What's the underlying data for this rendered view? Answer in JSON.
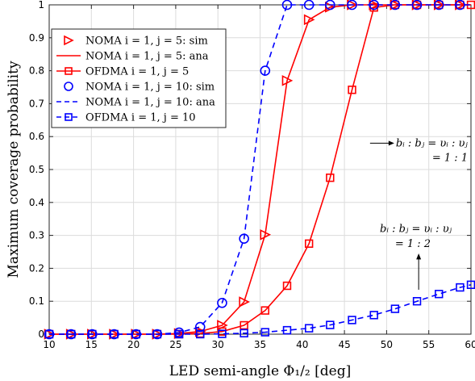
{
  "chart_data": {
    "type": "line",
    "xlabel": "LED semi-angle Φ₁/₂ [deg]",
    "ylabel": "Maximum coverage probability",
    "xlim": [
      10,
      60
    ],
    "ylim": [
      0,
      1
    ],
    "xticks": [
      10,
      15,
      20,
      25,
      30,
      35,
      40,
      45,
      50,
      55,
      60
    ],
    "yticks": [
      0,
      0.1,
      0.2,
      0.3,
      0.4,
      0.5,
      0.6,
      0.7,
      0.8,
      0.9,
      1
    ],
    "ytick_labels": [
      "0",
      "0.1",
      "0.2",
      "0.3",
      "0.4",
      "0.5",
      "0.6",
      "0.7",
      "0.8",
      "0.9",
      "1"
    ],
    "grid": true,
    "legend_position": "top-left",
    "series": [
      {
        "name": "NOMA i = 1, j = 5: sim",
        "color": "#ff0000",
        "line": "none",
        "marker": "triangle-right",
        "x": [
          10,
          12.6,
          15.1,
          17.7,
          20.3,
          22.8,
          25.4,
          27.9,
          30.5,
          33.1,
          35.6,
          38.2,
          40.8,
          43.3,
          45.9,
          48.5,
          51.0,
          53.6,
          56.2,
          58.7
        ],
        "y": [
          0,
          0,
          0,
          0,
          0,
          0,
          0.002,
          0.008,
          0.027,
          0.098,
          0.302,
          0.77,
          0.955,
          0.993,
          1,
          1,
          1,
          1,
          1,
          1
        ]
      },
      {
        "name": "NOMA i = 1, j = 5: ana",
        "color": "#ff0000",
        "line": "solid",
        "marker": "none",
        "x": [
          10,
          12.6,
          15.1,
          17.7,
          20.3,
          22.8,
          25.4,
          27.9,
          30.5,
          33.1,
          35.6,
          38.2,
          40.8,
          43.3,
          45.9,
          48.5,
          51.0,
          53.6,
          56.2,
          58.7,
          60
        ],
        "y": [
          0,
          0,
          0,
          0,
          0,
          0,
          0.002,
          0.008,
          0.027,
          0.098,
          0.302,
          0.77,
          0.955,
          0.993,
          1,
          1,
          1,
          1,
          1,
          1,
          1
        ]
      },
      {
        "name": "OFDMA i = 1, j = 5",
        "color": "#ff0000",
        "line": "solid",
        "marker": "square",
        "x": [
          10,
          12.6,
          15.1,
          17.7,
          20.3,
          22.8,
          25.4,
          27.9,
          30.5,
          33.1,
          35.6,
          38.2,
          40.8,
          43.3,
          45.9,
          48.5,
          51.0,
          53.6,
          56.2,
          58.7,
          60
        ],
        "y": [
          0,
          0,
          0,
          0,
          0,
          0,
          0,
          0.002,
          0.008,
          0.027,
          0.072,
          0.147,
          0.275,
          0.475,
          0.742,
          0.992,
          1,
          1,
          1,
          1,
          1
        ]
      },
      {
        "name": "NOMA i = 1, j = 10: sim",
        "color": "#0000ff",
        "line": "none",
        "marker": "circle",
        "x": [
          10,
          12.6,
          15.1,
          17.7,
          20.3,
          22.8,
          25.4,
          27.9,
          30.5,
          33.1,
          35.6,
          38.2,
          40.8,
          43.3,
          45.9,
          48.5,
          51.0,
          53.6,
          56.2,
          58.7
        ],
        "y": [
          0,
          0,
          0,
          0,
          0,
          0,
          0.005,
          0.022,
          0.095,
          0.29,
          0.8,
          1,
          1,
          1,
          1,
          1,
          1,
          1,
          1,
          1
        ]
      },
      {
        "name": "NOMA i = 1, j = 10: ana",
        "color": "#0000ff",
        "line": "dashed",
        "marker": "none",
        "x": [
          10,
          12.6,
          15.1,
          17.7,
          20.3,
          22.8,
          25.4,
          27.9,
          30.5,
          33.1,
          35.6,
          38.2,
          40.8,
          43.3,
          45.9,
          48.5,
          51.0,
          53.6,
          56.2,
          58.7,
          60
        ],
        "y": [
          0,
          0,
          0,
          0,
          0,
          0,
          0.005,
          0.022,
          0.095,
          0.29,
          0.8,
          1,
          1,
          1,
          1,
          1,
          1,
          1,
          1,
          1,
          1
        ]
      },
      {
        "name": "OFDMA i = 1, j = 10",
        "color": "#0000ff",
        "line": "dashed",
        "marker": "square",
        "x": [
          10,
          12.6,
          15.1,
          17.7,
          20.3,
          22.8,
          25.4,
          27.9,
          30.5,
          33.1,
          35.6,
          38.2,
          40.8,
          43.3,
          45.9,
          48.5,
          51.0,
          53.6,
          56.2,
          58.7,
          60
        ],
        "y": [
          0,
          0,
          0,
          0,
          0,
          0,
          0,
          0,
          0.001,
          0.003,
          0.006,
          0.012,
          0.018,
          0.028,
          0.043,
          0.058,
          0.077,
          0.1,
          0.122,
          0.142,
          0.15
        ]
      }
    ],
    "annotations": [
      {
        "line1": "bᵢ : bⱼ = υᵢ : υⱼ",
        "line2": "= 1 : 1",
        "arrow": "right",
        "x": 50,
        "y": 0.58
      },
      {
        "line1": "bᵢ : bⱼ = υᵢ : υⱼ",
        "line2": "= 1 : 2",
        "arrow": "down",
        "x": 53.8,
        "y": 0.23
      }
    ]
  }
}
